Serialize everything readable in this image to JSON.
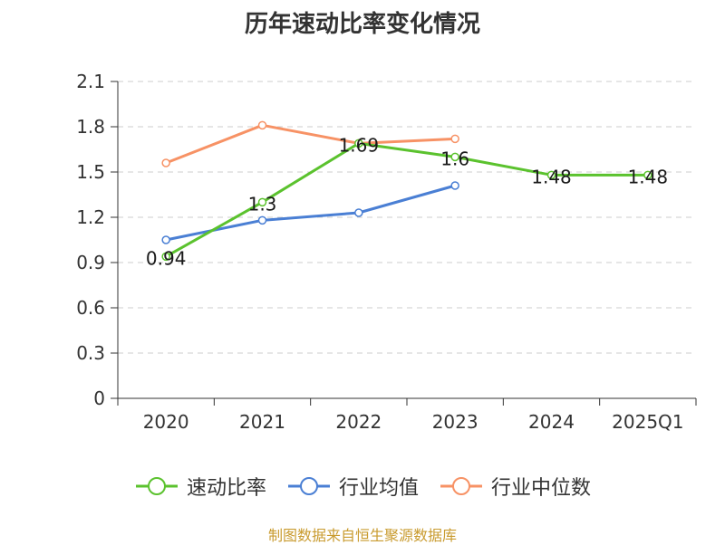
{
  "chart_data": {
    "type": "line",
    "title": "历年速动比率变化情况",
    "categories": [
      "2020",
      "2021",
      "2022",
      "2023",
      "2024",
      "2025Q1"
    ],
    "ylim": [
      0,
      2.1
    ],
    "yticks": [
      "0",
      "0.3",
      "0.6",
      "0.9",
      "1.2",
      "1.5",
      "1.8",
      "2.1"
    ],
    "grid": true,
    "legend_position": "bottom",
    "series": [
      {
        "name": "速动比率",
        "color": "#5bc22e",
        "values": [
          0.94,
          1.3,
          1.69,
          1.6,
          1.48,
          1.48
        ],
        "labels": [
          "0.94",
          "1.3",
          "1.69",
          "1.6",
          "1.48",
          "1.48"
        ]
      },
      {
        "name": "行业均值",
        "color": "#4a7fd4",
        "values": [
          1.05,
          1.18,
          1.23,
          1.41,
          null,
          null
        ]
      },
      {
        "name": "行业中位数",
        "color": "#f79265",
        "values": [
          1.56,
          1.81,
          1.69,
          1.72,
          null,
          null
        ]
      }
    ]
  },
  "source": "制图数据来自恒生聚源数据库"
}
